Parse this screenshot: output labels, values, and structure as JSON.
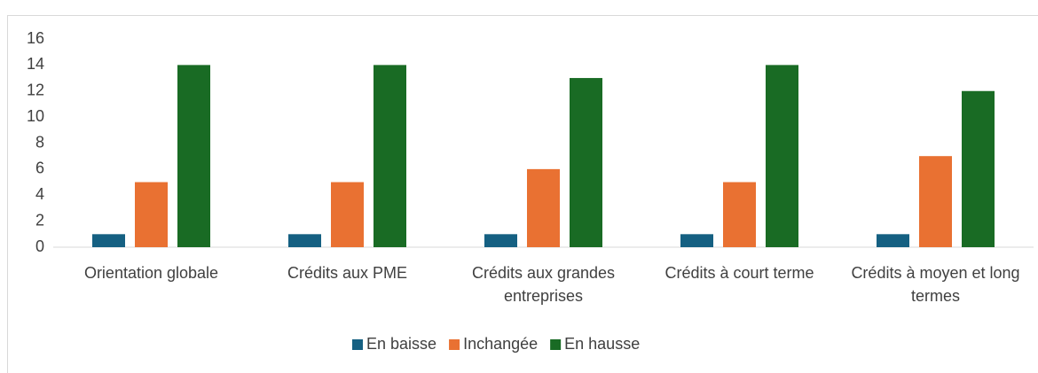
{
  "chart_data": {
    "type": "bar",
    "categories": [
      "Orientation globale",
      "Crédits aux PME",
      "Crédits aux grandes entreprises",
      "Crédits à court terme",
      "Crédits à moyen et long termes"
    ],
    "series": [
      {
        "name": "En baisse",
        "color": "#156082",
        "values": [
          1,
          1,
          1,
          1,
          1
        ]
      },
      {
        "name": "Inchangée",
        "color": "#e97132",
        "values": [
          5,
          5,
          6,
          5,
          7
        ]
      },
      {
        "name": "En hausse",
        "color": "#196b24",
        "values": [
          14,
          14,
          13,
          14,
          12
        ]
      }
    ],
    "ylim": [
      0,
      16
    ],
    "yticks": [
      0,
      2,
      4,
      6,
      8,
      10,
      12,
      14,
      16
    ],
    "grid": false,
    "legend": "bottom"
  }
}
